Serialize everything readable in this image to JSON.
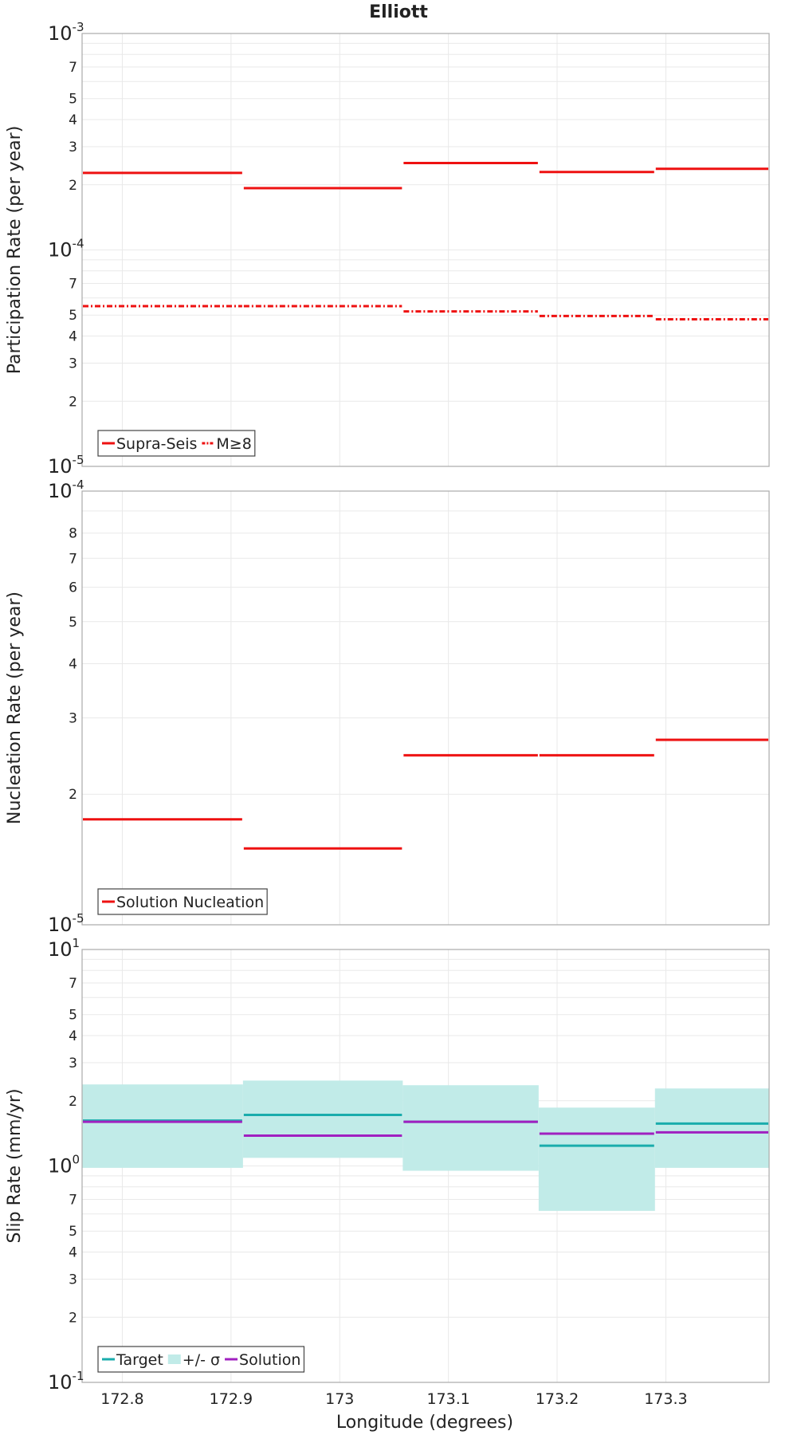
{
  "chart_data": {
    "title": "Elliott",
    "xlabel": "Longitude (degrees)",
    "xlim": [
      172.763,
      173.395
    ],
    "x_ticks": [
      "172.8",
      "172.9",
      "173",
      "173.1",
      "173.2",
      "173.3"
    ],
    "x_tick_values": [
      172.8,
      172.9,
      173.0,
      173.1,
      173.2,
      173.3
    ],
    "bins": [
      [
        172.763,
        172.911
      ],
      [
        172.911,
        173.058
      ],
      [
        173.058,
        173.183
      ],
      [
        173.183,
        173.29
      ],
      [
        173.29,
        173.395
      ]
    ],
    "panels": [
      {
        "type": "line",
        "yscale": "log",
        "ylabel": "Participation Rate (per year)",
        "ylim": [
          1e-05,
          0.001
        ],
        "decade_labels": [
          {
            "value": 0.001,
            "base": "10",
            "exp": "-3"
          },
          {
            "value": 0.0001,
            "base": "10",
            "exp": "-4"
          },
          {
            "value": 1e-05,
            "base": "10",
            "exp": "-5"
          }
        ],
        "minor_tick_labels": [
          "2",
          "3",
          "4",
          "5",
          "7"
        ],
        "legend_position": "bottom-left",
        "series": [
          {
            "name": "Supra-Seis",
            "style": "solid",
            "color": "#ee1111",
            "values": [
              0.000227,
              0.000193,
              0.000252,
              0.000229,
              0.000237
            ]
          },
          {
            "name": "M≥8",
            "style": "dashdot",
            "color": "#ee1111",
            "values": [
              5.5e-05,
              5.5e-05,
              5.2e-05,
              4.95e-05,
              4.78e-05
            ]
          }
        ]
      },
      {
        "type": "line",
        "yscale": "log",
        "ylabel": "Nucleation Rate (per year)",
        "ylim": [
          1e-05,
          0.0001
        ],
        "decade_labels": [
          {
            "value": 0.0001,
            "base": "10",
            "exp": "-4"
          },
          {
            "value": 1e-05,
            "base": "10",
            "exp": "-5"
          }
        ],
        "minor_tick_labels": [
          "2",
          "3",
          "4",
          "5",
          "6",
          "7",
          "8"
        ],
        "legend_position": "bottom-left",
        "series": [
          {
            "name": "Solution Nucleation",
            "style": "solid",
            "color": "#ee1111",
            "values": [
              1.75e-05,
              1.5e-05,
              2.46e-05,
              2.46e-05,
              2.67e-05
            ]
          }
        ]
      },
      {
        "type": "line",
        "yscale": "log",
        "ylabel": "Slip Rate (mm/yr)",
        "ylim": [
          0.1,
          10
        ],
        "decade_labels": [
          {
            "value": 10,
            "base": "10",
            "exp": "1"
          },
          {
            "value": 1,
            "base": "10",
            "exp": "0"
          },
          {
            "value": 0.1,
            "base": "10",
            "exp": "-1"
          }
        ],
        "minor_tick_labels": [
          "2",
          "3",
          "4",
          "5",
          "7"
        ],
        "legend_position": "bottom-left",
        "series": [
          {
            "name": "Target",
            "style": "solid",
            "color": "#1aacac",
            "values": [
              1.62,
              1.72,
              1.6,
              1.24,
              1.57
            ]
          },
          {
            "name": "+/- σ",
            "style": "band",
            "color": "#c1ebe8",
            "lower": [
              0.98,
              1.09,
              0.95,
              0.62,
              0.98
            ],
            "upper": [
              2.38,
              2.48,
              2.36,
              1.86,
              2.28
            ]
          },
          {
            "name": "Solution",
            "style": "solid",
            "color": "#a020c0",
            "values": [
              1.6,
              1.38,
              1.6,
              1.41,
              1.43
            ]
          }
        ]
      }
    ]
  }
}
